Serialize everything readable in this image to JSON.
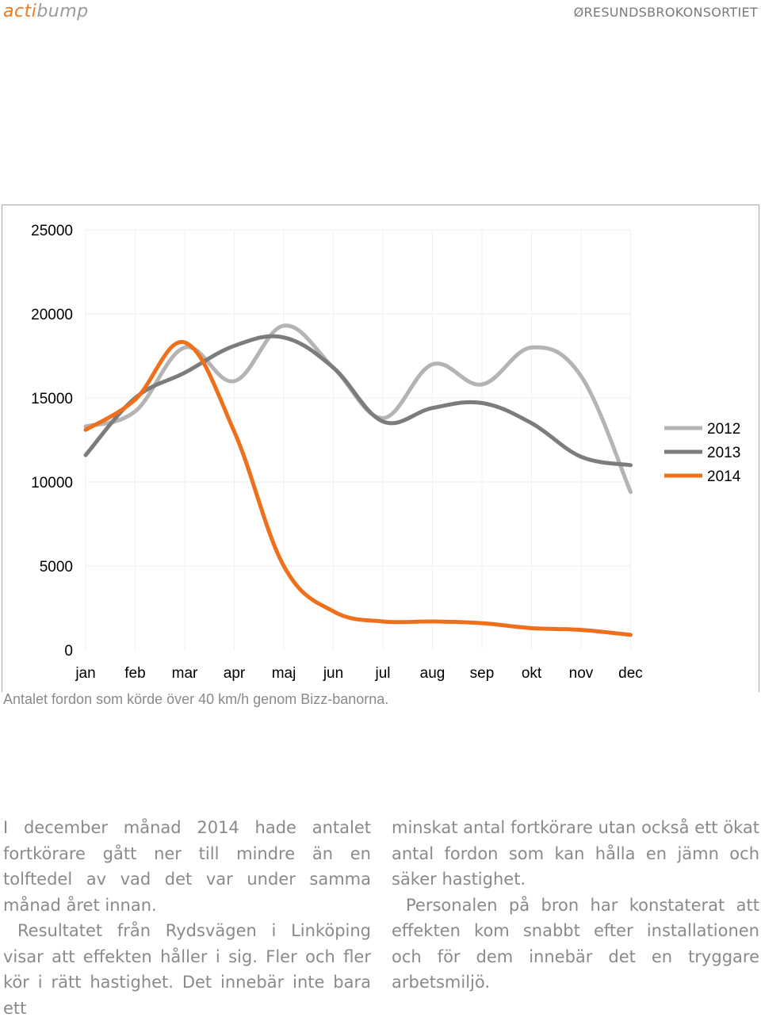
{
  "header": {
    "logo_part1": "acti",
    "logo_part2": "bump",
    "right": "ØRESUNDSBROKONSORTIET"
  },
  "chart_data": {
    "type": "line",
    "categories": [
      "jan",
      "feb",
      "mar",
      "apr",
      "maj",
      "jun",
      "jul",
      "aug",
      "sep",
      "okt",
      "nov",
      "dec"
    ],
    "ylim": [
      0,
      25000
    ],
    "yticks": [
      0,
      5000,
      10000,
      15000,
      20000,
      25000
    ],
    "grid": true,
    "legend_position": "right",
    "series": [
      {
        "name": "2012",
        "color": "#b4b4b4",
        "values": [
          13300,
          14200,
          18000,
          16000,
          19300,
          16800,
          13800,
          17000,
          15800,
          18000,
          16300,
          9400
        ]
      },
      {
        "name": "2013",
        "color": "#7c7c7c",
        "values": [
          11600,
          15000,
          16500,
          18100,
          18600,
          16800,
          13600,
          14400,
          14700,
          13500,
          11500,
          11000
        ]
      },
      {
        "name": "2014",
        "color": "#ef6f1a",
        "values": [
          13100,
          14900,
          18300,
          13000,
          5000,
          2300,
          1700,
          1700,
          1600,
          1300,
          1200,
          900
        ]
      }
    ]
  },
  "caption": "Antalet fordon som körde över 40 km/h genom Bizz-banorna.",
  "body": {
    "left_p1": "I december månad 2014 hade antalet fortkörare gått ner till mindre än en tolftedel av vad det var under samma månad året innan.",
    "left_p2": "Resultatet från Rydsvägen i Linköping visar att effekten håller i sig. Fler och fler kör i rätt hastighet. Det innebär inte bara ett",
    "right_p1": "minskat antal fortkörare utan också ett ökat antal fordon som kan hålla en jämn och säker hastighet.",
    "right_p2": "Personalen på bron har konstaterat att effekten kom snabbt efter installationen och för dem innebär det en tryggare arbetsmiljö."
  }
}
